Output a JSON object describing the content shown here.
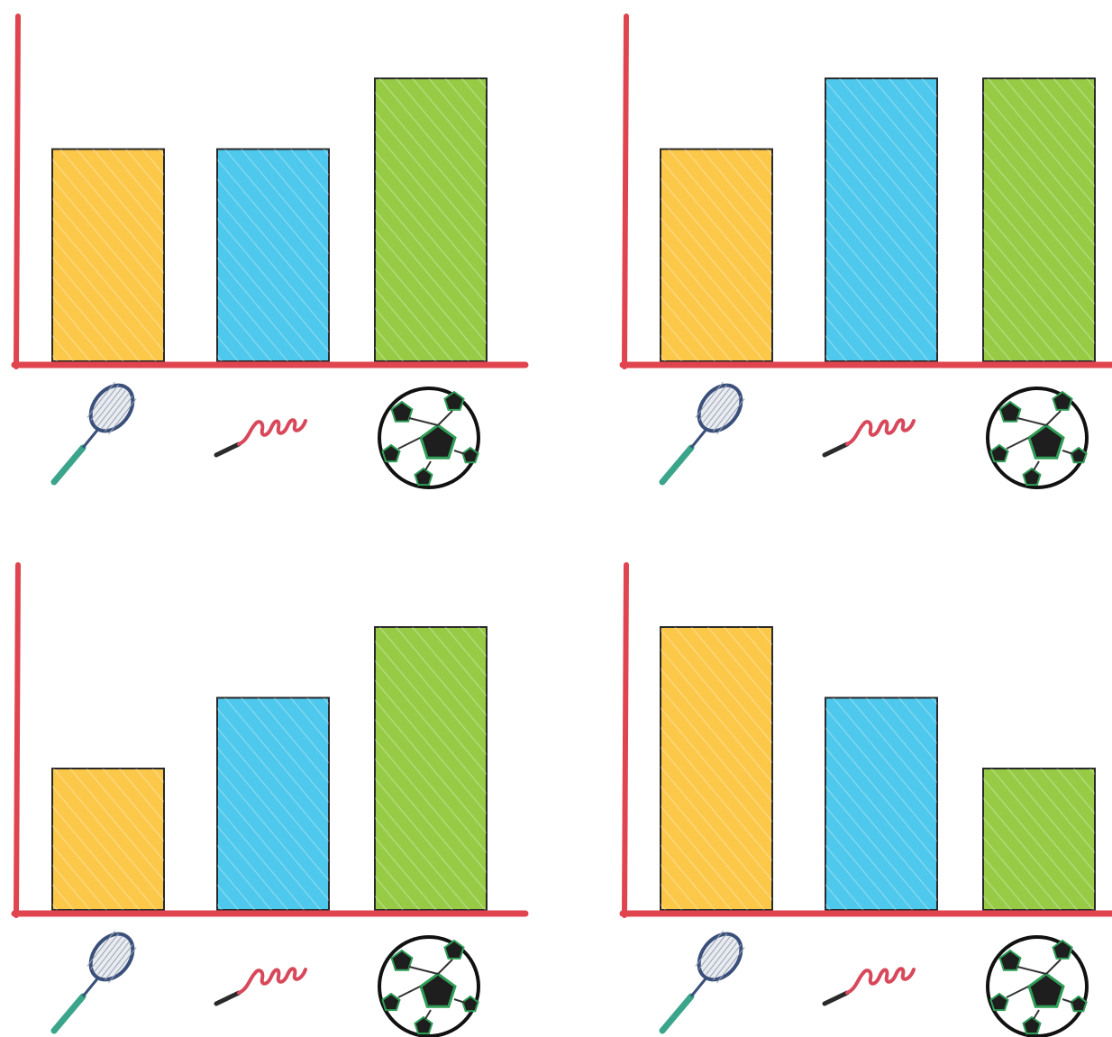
{
  "colors": {
    "axis": "#e0444f",
    "bar_outline": "#2a2a2a",
    "racket": "#3a4f7a",
    "racket_grip": "#3aa58a",
    "rope": "#d8485a",
    "rope_handle": "#2a2a2a",
    "ball_panel": "#1e1e1e",
    "ball_edge": "#2f9e57"
  },
  "chart_data": [
    {
      "type": "bar",
      "categories": [
        "racket",
        "skipping-rope",
        "football"
      ],
      "category_icons": [
        "racket-icon",
        "skipping-rope-icon",
        "football-icon"
      ],
      "bar_colors": [
        "#fcc84a",
        "#4ec8ec",
        "#97cb45"
      ],
      "values": [
        3,
        3,
        4
      ],
      "ylim": [
        0,
        4
      ]
    },
    {
      "type": "bar",
      "categories": [
        "racket",
        "skipping-rope",
        "football"
      ],
      "category_icons": [
        "racket-icon",
        "skipping-rope-icon",
        "football-icon"
      ],
      "bar_colors": [
        "#fcc84a",
        "#4ec8ec",
        "#97cb45"
      ],
      "values": [
        3,
        4,
        4
      ],
      "ylim": [
        0,
        4
      ]
    },
    {
      "type": "bar",
      "categories": [
        "racket",
        "skipping-rope",
        "football"
      ],
      "category_icons": [
        "racket-icon",
        "skipping-rope-icon",
        "football-icon"
      ],
      "bar_colors": [
        "#fcc84a",
        "#4ec8ec",
        "#97cb45"
      ],
      "values": [
        2,
        3,
        4
      ],
      "ylim": [
        0,
        4
      ]
    },
    {
      "type": "bar",
      "categories": [
        "racket",
        "skipping-rope",
        "football"
      ],
      "category_icons": [
        "racket-icon",
        "skipping-rope-icon",
        "football-icon"
      ],
      "bar_colors": [
        "#fcc84a",
        "#4ec8ec",
        "#97cb45"
      ],
      "values": [
        4,
        3,
        2
      ],
      "ylim": [
        0,
        4
      ]
    }
  ]
}
